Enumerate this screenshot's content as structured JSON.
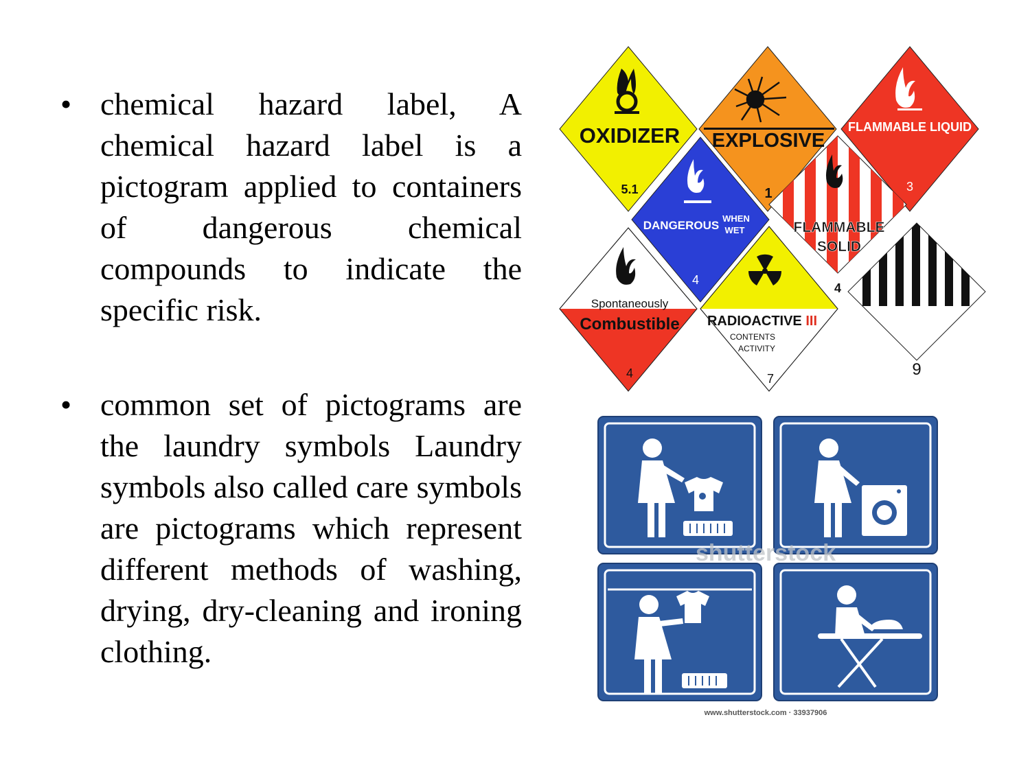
{
  "bullets": [
    {
      "text": "chemical hazard label, A chemical hazard label is a pictogram applied to containers of dangerous chemical compounds to indicate the specific risk."
    },
    {
      "text": "common set of pictograms are the laundry symbols Laundry symbols also called care symbols are pictograms which represent different methods of washing, drying, dry-cleaning and ironing clothing."
    }
  ],
  "bullet_glyph": "•",
  "hazard_labels": {
    "oxidizer": {
      "title": "OXIDIZER",
      "class": "5.1",
      "color": "#f2f000"
    },
    "explosive": {
      "title": "EXPLOSIVE",
      "class": "1",
      "color": "#f5931e"
    },
    "flammable_liquid": {
      "title": "FLAMMABLE LIQUID",
      "class": "3",
      "color": "#ee3524"
    },
    "dangerous_when_wet": {
      "title": "DANGEROUS",
      "title_small_1": "WHEN",
      "title_small_2": "WET",
      "class": "4",
      "color": "#2a3fd6"
    },
    "flammable_solid": {
      "title_line_1": "FLAMMABLE",
      "title_line_2": "SOLID",
      "class": "4",
      "color": "#ee3524"
    },
    "spontaneously_combustible": {
      "title_line_1": "Spontaneously",
      "title_line_2": "Combustible",
      "class": "4",
      "color": "#ee3524"
    },
    "radioactive": {
      "title": "RADIOACTIVE",
      "category": "III",
      "line_1": "CONTENTS",
      "line_2": "ACTIVITY",
      "class": "7",
      "color": "#f2f000"
    },
    "miscellaneous": {
      "class": "9"
    }
  },
  "laundry": {
    "panel_color": "#2e5a9e",
    "watermark": "shutterstock",
    "caption": "www.shutterstock.com · 33937906"
  }
}
